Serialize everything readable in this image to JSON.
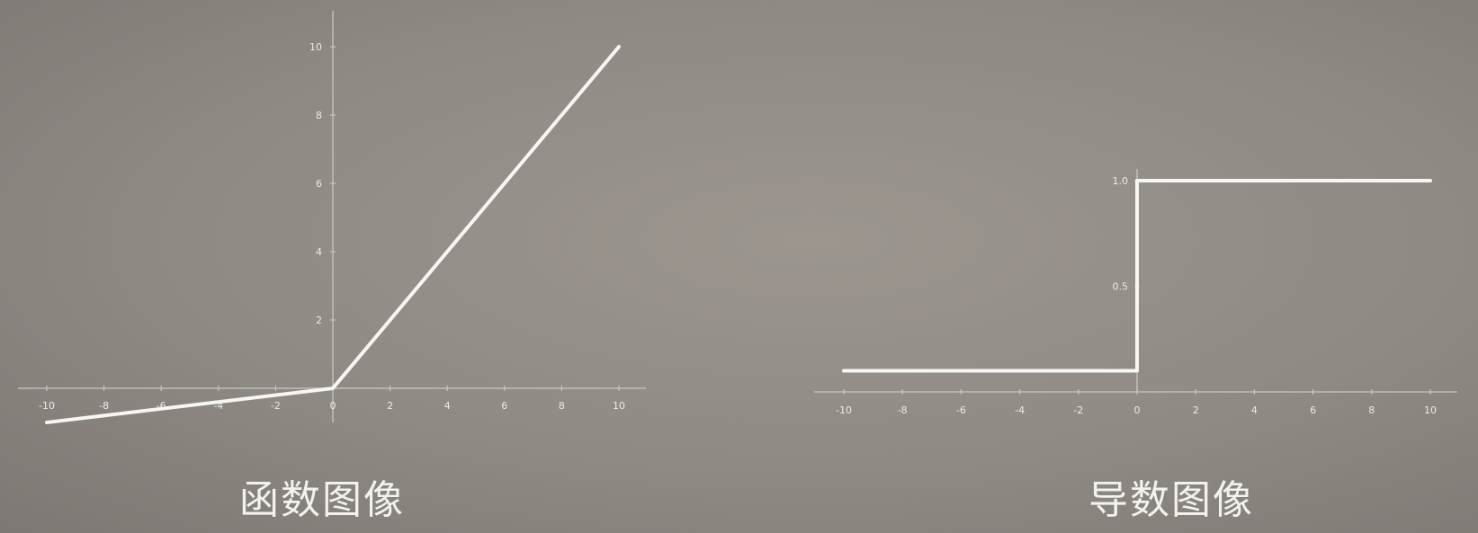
{
  "captions": {
    "left": "函数图像",
    "right": "导数图像"
  },
  "colors": {
    "background": "#908b85",
    "line": "#f6f6f4",
    "axis": "#c9c6c1"
  },
  "chart_data": [
    {
      "type": "line",
      "title": "",
      "xlabel": "",
      "ylabel": "",
      "xlim": [
        -10,
        10
      ],
      "ylim": [
        -1,
        11
      ],
      "x_ticks": [
        "-10",
        "-8",
        "-6",
        "-4",
        "-2",
        "0",
        "2",
        "4",
        "6",
        "8",
        "10"
      ],
      "y_ticks": [
        "2",
        "4",
        "6",
        "8",
        "10"
      ],
      "grid": false,
      "series": [
        {
          "x": [
            -10,
            0,
            10
          ],
          "y": [
            -1,
            0,
            10
          ]
        }
      ]
    },
    {
      "type": "line",
      "title": "",
      "xlabel": "",
      "ylabel": "",
      "xlim": [
        -10,
        10
      ],
      "ylim": [
        0,
        1
      ],
      "x_ticks": [
        "-10",
        "-8",
        "-6",
        "-4",
        "-2",
        "0",
        "2",
        "4",
        "6",
        "8",
        "10"
      ],
      "y_ticks": [
        "0.5",
        "1.0"
      ],
      "grid": false,
      "series": [
        {
          "x": [
            -10,
            0,
            0,
            10
          ],
          "y": [
            0.1,
            0.1,
            1,
            1
          ]
        }
      ]
    }
  ]
}
